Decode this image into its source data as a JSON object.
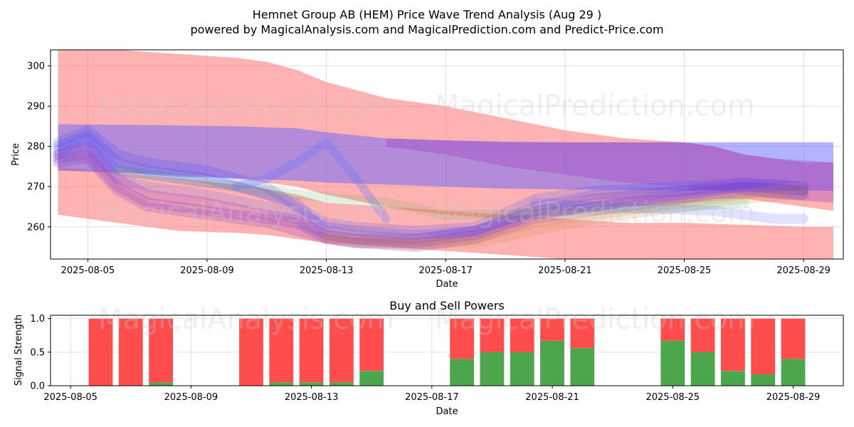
{
  "figure": {
    "title_line1": "Hemnet Group AB (HEM) Price Wave Trend Analysis (Aug 29 )",
    "title_line2": "powered by MagicalAnalysis.com and MagicalPrediction.com and Predict-Price.com",
    "watermarks": [
      "MagicalAnalysis.com",
      "MagicalPrediction.com"
    ]
  },
  "chart_data": [
    {
      "type": "area",
      "xlabel": "Date",
      "ylabel": "Price",
      "x_ticks": [
        "2025-08-05",
        "2025-08-09",
        "2025-08-13",
        "2025-08-17",
        "2025-08-21",
        "2025-08-25",
        "2025-08-29"
      ],
      "y_ticks": [
        260,
        270,
        280,
        290,
        300
      ],
      "xlim": [
        "2025-08-03T18:00",
        "2025-08-30T08:00"
      ],
      "ylim": [
        252,
        304
      ],
      "grid": true,
      "bands": [
        {
          "color": "#ff6666",
          "opacity": 0.5,
          "x": [
            "2025-08-04",
            "2025-08-06",
            "2025-08-08",
            "2025-08-10",
            "2025-08-11",
            "2025-08-12",
            "2025-08-13",
            "2025-08-15",
            "2025-08-17",
            "2025-08-19",
            "2025-08-21",
            "2025-08-22",
            "2025-08-23",
            "2025-08-25",
            "2025-08-26",
            "2025-08-27",
            "2025-08-28",
            "2025-08-29",
            "2025-08-30"
          ],
          "upper": [
            304,
            304,
            303,
            302,
            301,
            299,
            296,
            292,
            290,
            287,
            284,
            283,
            282,
            281,
            280,
            278,
            277,
            276,
            276
          ],
          "lower": [
            274,
            273.5,
            273,
            272,
            271,
            270,
            268,
            265,
            263,
            262,
            263,
            264,
            265,
            266,
            267,
            267,
            266,
            265,
            264
          ]
        },
        {
          "color": "#ff6666",
          "opacity": 0.5,
          "x": [
            "2025-08-04",
            "2025-08-06",
            "2025-08-08",
            "2025-08-10",
            "2025-08-11",
            "2025-08-12",
            "2025-08-13",
            "2025-08-15",
            "2025-08-17",
            "2025-08-19",
            "2025-08-21",
            "2025-08-23",
            "2025-08-25",
            "2025-08-27",
            "2025-08-29",
            "2025-08-30"
          ],
          "upper": [
            275,
            273.5,
            272,
            270.5,
            269.5,
            268,
            266,
            265,
            264,
            263,
            262,
            261,
            261,
            260.5,
            260,
            260
          ],
          "lower": [
            263,
            261,
            259,
            258.5,
            258,
            257,
            256,
            255,
            254,
            253,
            252,
            251,
            251,
            250,
            250,
            250
          ]
        },
        {
          "color": "#6666ff",
          "opacity": 0.5,
          "x": [
            "2025-08-04",
            "2025-08-06",
            "2025-08-08",
            "2025-08-10",
            "2025-08-12",
            "2025-08-13",
            "2025-08-15",
            "2025-08-17",
            "2025-08-19",
            "2025-08-21",
            "2025-08-23",
            "2025-08-25",
            "2025-08-27",
            "2025-08-30"
          ],
          "upper": [
            285.5,
            285.4,
            285.2,
            285,
            284.5,
            283.5,
            282,
            281.5,
            281.2,
            281,
            281,
            281,
            281,
            281
          ],
          "lower": [
            274,
            273.5,
            272.5,
            272,
            271.5,
            271,
            270.5,
            270,
            269.5,
            269.3,
            269.2,
            269,
            269,
            269
          ]
        },
        {
          "color": "#a040c0",
          "opacity": 0.35,
          "x": [
            "2025-08-15",
            "2025-08-17",
            "2025-08-19",
            "2025-08-21",
            "2025-08-23",
            "2025-08-25",
            "2025-08-26",
            "2025-08-27",
            "2025-08-28",
            "2025-08-30"
          ],
          "upper": [
            282,
            281.5,
            281,
            281,
            281,
            281,
            280,
            278,
            277,
            276
          ],
          "lower": [
            280,
            278,
            275,
            273,
            271,
            270,
            269,
            268,
            267,
            266
          ]
        }
      ],
      "series": [
        {
          "color": "#3344ff",
          "opacity": 0.18,
          "width": 14,
          "x": [
            "2025-08-04",
            "2025-08-05",
            "2025-08-06",
            "2025-08-07",
            "2025-08-09",
            "2025-08-11",
            "2025-08-12",
            "2025-08-13",
            "2025-08-14",
            "2025-08-16",
            "2025-08-18",
            "2025-08-20",
            "2025-08-22",
            "2025-08-25",
            "2025-08-27",
            "2025-08-29"
          ],
          "y": [
            281,
            284,
            278,
            276,
            274,
            270,
            265,
            261,
            260,
            259,
            260,
            267,
            269,
            270,
            271,
            270
          ]
        },
        {
          "color": "#3344ff",
          "opacity": 0.18,
          "width": 14,
          "x": [
            "2025-08-04",
            "2025-08-05",
            "2025-08-06",
            "2025-08-07",
            "2025-08-09",
            "2025-08-11",
            "2025-08-12",
            "2025-08-13",
            "2025-08-14",
            "2025-08-16",
            "2025-08-18",
            "2025-08-20",
            "2025-08-22",
            "2025-08-25",
            "2025-08-27",
            "2025-08-29"
          ],
          "y": [
            280,
            283,
            276,
            274,
            272,
            268,
            264,
            260,
            259,
            258,
            259,
            265,
            268,
            269,
            270,
            269
          ]
        },
        {
          "color": "#4455ff",
          "opacity": 0.18,
          "width": 14,
          "x": [
            "2025-08-04",
            "2025-08-05",
            "2025-08-06",
            "2025-08-08",
            "2025-08-10",
            "2025-08-12",
            "2025-08-13",
            "2025-08-14",
            "2025-08-16",
            "2025-08-18",
            "2025-08-20",
            "2025-08-23",
            "2025-08-25",
            "2025-08-27",
            "2025-08-29"
          ],
          "y": [
            279,
            282,
            274,
            272,
            270,
            266,
            259,
            258,
            257,
            259,
            264,
            267,
            268,
            270,
            269
          ]
        },
        {
          "color": "#5566ff",
          "opacity": 0.18,
          "width": 14,
          "x": [
            "2025-08-04",
            "2025-08-05",
            "2025-08-06",
            "2025-08-07",
            "2025-08-09",
            "2025-08-11",
            "2025-08-13",
            "2025-08-14",
            "2025-08-16",
            "2025-08-18",
            "2025-08-20",
            "2025-08-23",
            "2025-08-25",
            "2025-08-28",
            "2025-08-29"
          ],
          "y": [
            278,
            281,
            272,
            270,
            268,
            265,
            258,
            257,
            256,
            258,
            263,
            266,
            267,
            269,
            268
          ]
        },
        {
          "color": "#8a40c8",
          "opacity": 0.25,
          "width": 14,
          "x": [
            "2025-08-04",
            "2025-08-05",
            "2025-08-06",
            "2025-08-07",
            "2025-08-09",
            "2025-08-11",
            "2025-08-12",
            "2025-08-13",
            "2025-08-14",
            "2025-08-16",
            "2025-08-18",
            "2025-08-20",
            "2025-08-22",
            "2025-08-25",
            "2025-08-27",
            "2025-08-29"
          ],
          "y": [
            278,
            280,
            272,
            268,
            266,
            263,
            262,
            258,
            257,
            257,
            259,
            264,
            267,
            269,
            271,
            270
          ]
        },
        {
          "color": "#8a40c8",
          "opacity": 0.25,
          "width": 14,
          "x": [
            "2025-08-04",
            "2025-08-05",
            "2025-08-06",
            "2025-08-07",
            "2025-08-09",
            "2025-08-11",
            "2025-08-12",
            "2025-08-13",
            "2025-08-14",
            "2025-08-16",
            "2025-08-18",
            "2025-08-20",
            "2025-08-22",
            "2025-08-25",
            "2025-08-27",
            "2025-08-29"
          ],
          "y": [
            277,
            278,
            270,
            266,
            264,
            262,
            261,
            257,
            256,
            256,
            258,
            263,
            265,
            268,
            270,
            269
          ]
        },
        {
          "color": "#8a40c8",
          "opacity": 0.25,
          "width": 14,
          "x": [
            "2025-08-04",
            "2025-08-05",
            "2025-08-06",
            "2025-08-07",
            "2025-08-09",
            "2025-08-11",
            "2025-08-13",
            "2025-08-14",
            "2025-08-16",
            "2025-08-18",
            "2025-08-20",
            "2025-08-22",
            "2025-08-25",
            "2025-08-27",
            "2025-08-29"
          ],
          "y": [
            276,
            277,
            269,
            265,
            263,
            261,
            257,
            256,
            255,
            257,
            262,
            264,
            267,
            269,
            268
          ]
        },
        {
          "color": "#d08a4a",
          "opacity": 0.2,
          "width": 14,
          "x": [
            "2025-08-13",
            "2025-08-14",
            "2025-08-16",
            "2025-08-18",
            "2025-08-20",
            "2025-08-22",
            "2025-08-25",
            "2025-08-27",
            "2025-08-29"
          ],
          "y": [
            257,
            256,
            255.5,
            257,
            261,
            263,
            266,
            268,
            270
          ]
        },
        {
          "color": "#d08a4a",
          "opacity": 0.2,
          "width": 14,
          "x": [
            "2025-08-13",
            "2025-08-14",
            "2025-08-16",
            "2025-08-18",
            "2025-08-20",
            "2025-08-22",
            "2025-08-25",
            "2025-08-27",
            "2025-08-29"
          ],
          "y": [
            258,
            257,
            256,
            256,
            259,
            262,
            265,
            267,
            268
          ]
        },
        {
          "color": "#6677ff",
          "opacity": 0.3,
          "width": 12,
          "x": [
            "2025-08-10",
            "2025-08-11",
            "2025-08-12",
            "2025-08-13",
            "2025-08-14",
            "2025-08-15"
          ],
          "y": [
            270,
            272,
            276,
            281,
            272,
            262
          ]
        },
        {
          "color": "#60b060",
          "opacity": 0.18,
          "width": 14,
          "x": [
            "2025-08-06",
            "2025-08-09",
            "2025-08-12",
            "2025-08-15",
            "2025-08-17",
            "2025-08-19",
            "2025-08-21",
            "2025-08-23",
            "2025-08-25",
            "2025-08-27"
          ],
          "y": [
            274,
            271,
            268,
            266,
            263,
            263,
            264,
            264.5,
            265,
            266
          ]
        },
        {
          "color": "#5566ff",
          "opacity": 0.18,
          "width": 14,
          "x": [
            "2025-08-20",
            "2025-08-22",
            "2025-08-24",
            "2025-08-26",
            "2025-08-28",
            "2025-08-29"
          ],
          "y": [
            266,
            265,
            264.5,
            264,
            262,
            262
          ]
        }
      ]
    },
    {
      "type": "bar",
      "title": "Buy and Sell Powers",
      "xlabel": "Date",
      "ylabel": "Signal Strength",
      "x_ticks": [
        "2025-08-05",
        "2025-08-09",
        "2025-08-13",
        "2025-08-17",
        "2025-08-21",
        "2025-08-25",
        "2025-08-29"
      ],
      "y_ticks": [
        "0.0",
        "0.5",
        "1.0"
      ],
      "xlim": [
        "2025-08-04T08:00",
        "2025-08-30T16:00"
      ],
      "ylim": [
        0,
        1.05
      ],
      "grid": true,
      "bar_colors": {
        "buy": "#4ca64c",
        "sell": "#ff4c4c"
      },
      "dates": [
        "2025-08-06",
        "2025-08-07",
        "2025-08-08",
        "2025-08-11",
        "2025-08-12",
        "2025-08-13",
        "2025-08-14",
        "2025-08-15",
        "2025-08-18",
        "2025-08-19",
        "2025-08-20",
        "2025-08-21",
        "2025-08-22",
        "2025-08-25",
        "2025-08-26",
        "2025-08-27",
        "2025-08-28",
        "2025-08-29"
      ],
      "buy": [
        0,
        0,
        0.05,
        0,
        0.05,
        0.05,
        0.05,
        0.22,
        0.4,
        0.5,
        0.5,
        0.67,
        0.56,
        0.67,
        0.5,
        0.22,
        0.17,
        0.4
      ],
      "sell": [
        1,
        1,
        0.95,
        1,
        0.95,
        0.95,
        0.95,
        0.78,
        0.6,
        0.5,
        0.5,
        0.33,
        0.44,
        0.33,
        0.5,
        0.78,
        0.83,
        0.6
      ]
    }
  ]
}
